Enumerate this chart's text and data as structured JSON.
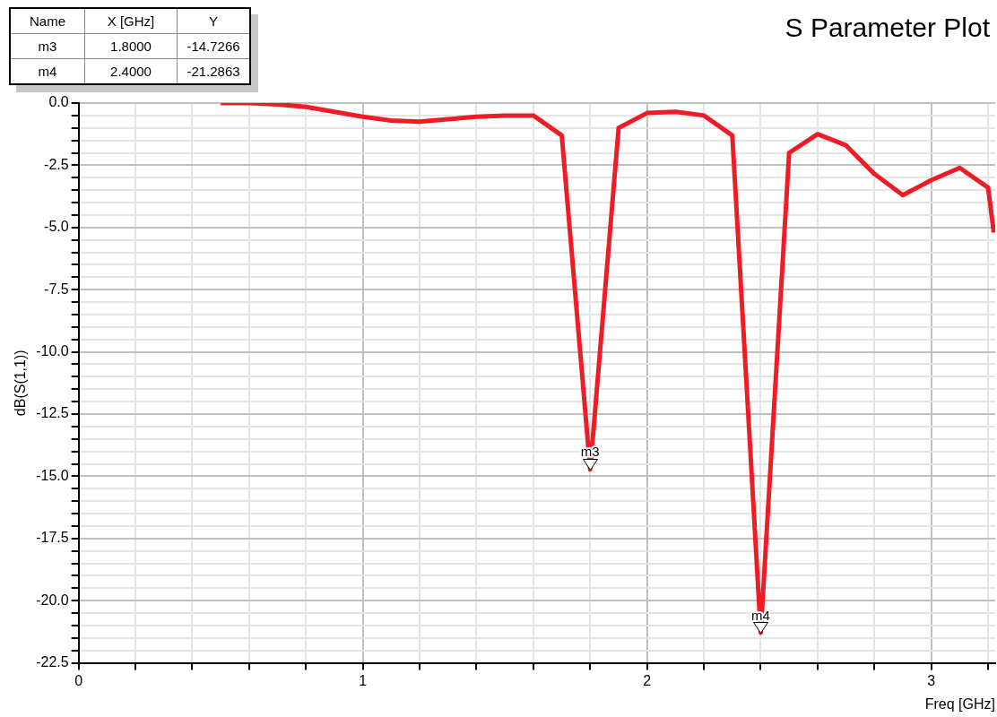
{
  "chart_data": {
    "type": "line",
    "title": "S Parameter Plot",
    "xlabel": "Freq [GHz]",
    "ylabel": "dB(S(1,1))",
    "series": [
      {
        "color": "#ee1c25",
        "x": [
          0.5,
          0.6,
          0.7,
          0.8,
          0.9,
          1.0,
          1.1,
          1.2,
          1.3,
          1.4,
          1.5,
          1.6,
          1.7,
          1.8,
          1.9,
          2.0,
          2.1,
          2.2,
          2.3,
          2.4,
          2.5,
          2.6,
          2.7,
          2.8,
          2.9,
          3.0,
          3.1,
          3.2,
          3.22
        ],
        "values": [
          0,
          0,
          -0.05,
          -0.15,
          -0.35,
          -0.55,
          -0.7,
          -0.75,
          -0.65,
          -0.55,
          -0.5,
          -0.5,
          -1.3,
          -14.7266,
          -1.0,
          -0.4,
          -0.35,
          -0.5,
          -1.3,
          -21.2863,
          -2.0,
          -1.25,
          -1.7,
          -2.85,
          -3.7,
          -3.1,
          -2.6,
          -3.4,
          -5.2
        ]
      }
    ],
    "xlim": [
      0,
      3.225
    ],
    "xticks": [
      0,
      {
        "value": 0.2,
        "label": null
      },
      {
        "value": 0.4,
        "label": null
      },
      {
        "value": 0.6,
        "label": null
      },
      {
        "value": 0.8,
        "label": null
      },
      1,
      {
        "value": 1.2,
        "label": null
      },
      {
        "value": 1.4,
        "label": null
      },
      {
        "value": 1.6,
        "label": null
      },
      {
        "value": 1.8,
        "label": null
      },
      2,
      {
        "value": 2.2,
        "label": null
      },
      {
        "value": 2.4,
        "label": null
      },
      {
        "value": 2.6,
        "label": null
      },
      {
        "value": 2.8,
        "label": null
      },
      3,
      {
        "value": 3.2,
        "label": null
      }
    ],
    "ylim": [
      -22.5,
      0
    ],
    "yticks": [
      {
        "value": -22.5,
        "label": "-22.5"
      },
      {
        "value": -22,
        "label": null
      },
      {
        "value": -21.5,
        "label": null
      },
      {
        "value": -21,
        "label": null
      },
      {
        "value": -20.5,
        "label": null
      },
      {
        "value": -20,
        "label": "-20.0"
      },
      {
        "value": -19.5,
        "label": null
      },
      {
        "value": -19,
        "label": null
      },
      {
        "value": -18.5,
        "label": null
      },
      {
        "value": -18,
        "label": null
      },
      {
        "value": -17.5,
        "label": "-17.5"
      },
      {
        "value": -17,
        "label": null
      },
      {
        "value": -16.5,
        "label": null
      },
      {
        "value": -16,
        "label": null
      },
      {
        "value": -15.5,
        "label": null
      },
      {
        "value": -15,
        "label": "-15.0"
      },
      {
        "value": -14.5,
        "label": null
      },
      {
        "value": -14,
        "label": null
      },
      {
        "value": -13.5,
        "label": null
      },
      {
        "value": -13,
        "label": null
      },
      {
        "value": -12.5,
        "label": "-12.5"
      },
      {
        "value": -12,
        "label": null
      },
      {
        "value": -11.5,
        "label": null
      },
      {
        "value": -11,
        "label": null
      },
      {
        "value": -10.5,
        "label": null
      },
      {
        "value": -10,
        "label": "-10.0"
      },
      {
        "value": -9.5,
        "label": null
      },
      {
        "value": -9,
        "label": null
      },
      {
        "value": -8.5,
        "label": null
      },
      {
        "value": -8,
        "label": null
      },
      {
        "value": -7.5,
        "label": "-7.5"
      },
      {
        "value": -7,
        "label": null
      },
      {
        "value": -6.5,
        "label": null
      },
      {
        "value": -6,
        "label": null
      },
      {
        "value": -5.5,
        "label": null
      },
      {
        "value": -5,
        "label": "-5.0"
      },
      {
        "value": -4.5,
        "label": null
      },
      {
        "value": -4,
        "label": null
      },
      {
        "value": -3.5,
        "label": null
      },
      {
        "value": -3,
        "label": null
      },
      {
        "value": -2.5,
        "label": "-2.5"
      },
      {
        "value": -2,
        "label": null
      },
      {
        "value": -1.5,
        "label": null
      },
      {
        "value": -1,
        "label": null
      },
      {
        "value": -0.5,
        "label": null
      },
      {
        "value": 0,
        "label": "0.0"
      }
    ],
    "grid": true,
    "legend": false,
    "marker": "none",
    "line_style": "solid",
    "annotations": [
      "Name",
      "X [GHz]",
      "Y",
      "m3",
      "1.8000",
      "-14.7266",
      "m4",
      "2.4000",
      "-21.2863",
      {
        "text": "m3",
        "x": 1.8,
        "y": -14.7266
      },
      {
        "text": "m4",
        "x": 2.4,
        "y": -21.2863
      }
    ]
  }
}
